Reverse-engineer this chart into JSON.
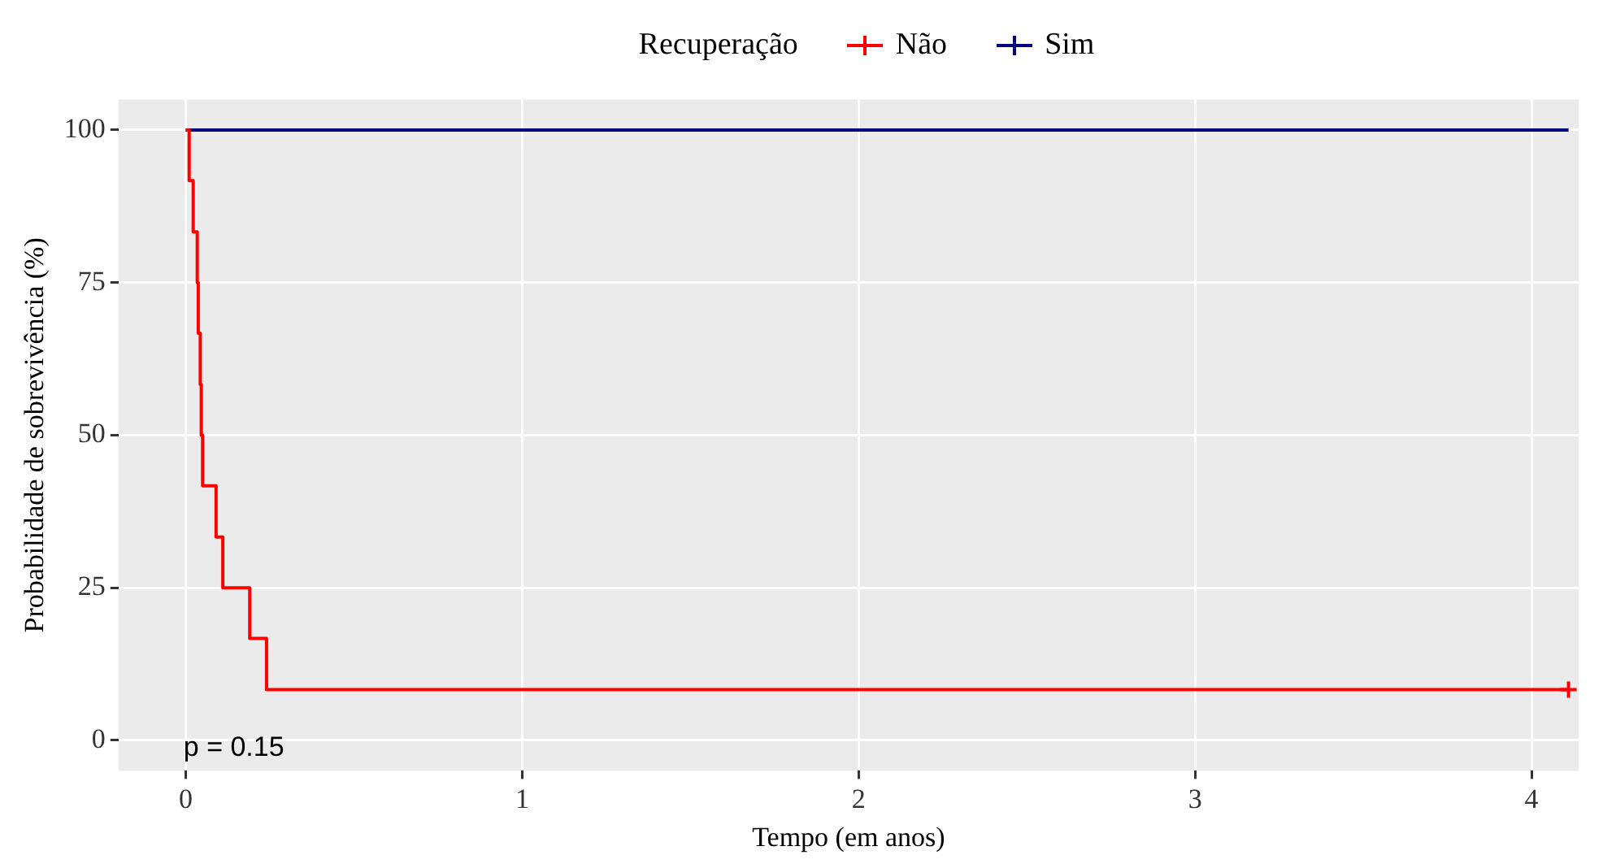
{
  "chart_data": {
    "type": "step",
    "xlabel": "Tempo (em anos)",
    "ylabel": "Probabilidade de sobrevivência (%)",
    "legend_title": "Recuperação",
    "legend": "top",
    "xlim": [
      -0.2,
      4.14
    ],
    "ylim": [
      -5,
      105
    ],
    "xticks": [
      0,
      1,
      2,
      3,
      4
    ],
    "yticks": [
      0,
      25,
      50,
      75,
      100
    ],
    "grid": true,
    "series": [
      {
        "name": "Não",
        "color": "#ff0000",
        "x": [
          0,
          0.01,
          0.022,
          0.034,
          0.037,
          0.043,
          0.046,
          0.05,
          0.09,
          0.11,
          0.19,
          0.24,
          4.11
        ],
        "values": [
          100,
          91.7,
          83.3,
          75,
          66.7,
          58.3,
          50,
          41.7,
          33.3,
          25,
          16.7,
          8.3,
          8.3
        ]
      },
      {
        "name": "Sim",
        "color": "#000080",
        "x": [
          0,
          4.11
        ],
        "values": [
          100,
          100
        ]
      },
      {
        "type": "scatter",
        "marker": "cross",
        "color": "#ff0000",
        "x": [
          4.11
        ],
        "values": [
          8.3
        ]
      }
    ],
    "annotations": [
      "p = 0.15"
    ]
  }
}
